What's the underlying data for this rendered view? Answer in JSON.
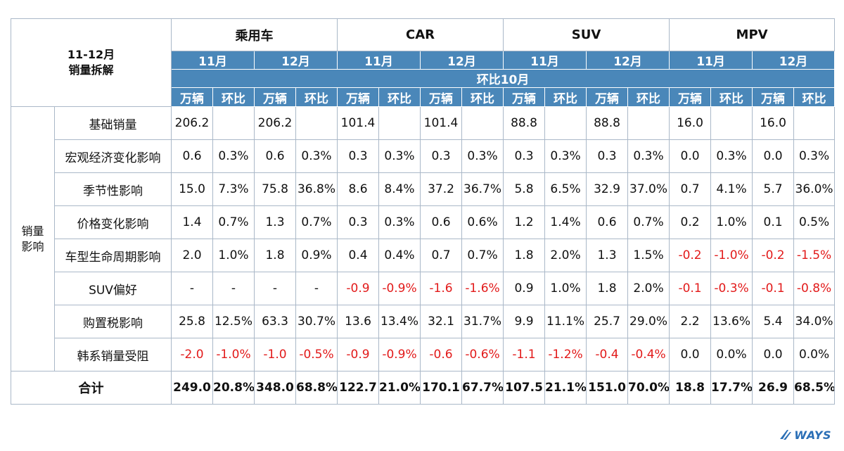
{
  "corner": {
    "line1": "11-12月",
    "line2": "销量拆解"
  },
  "groups": [
    "乘用车",
    "CAR",
    "SUV",
    "MPV"
  ],
  "months": [
    "11月",
    "12月",
    "11月",
    "12月",
    "11月",
    "12月",
    "11月",
    "12月"
  ],
  "ring_label": "环比10月",
  "units": [
    "万辆",
    "环比",
    "万辆",
    "环比",
    "万辆",
    "环比",
    "万辆",
    "环比",
    "万辆",
    "环比",
    "万辆",
    "环比",
    "万辆",
    "环比",
    "万辆",
    "环比"
  ],
  "category": {
    "line1": "销量",
    "line2": "影响"
  },
  "rows": [
    {
      "label": "基础销量",
      "values": [
        "206.2",
        "",
        "206.2",
        "",
        "101.4",
        "",
        "101.4",
        "",
        "88.8",
        "",
        "88.8",
        "",
        "16.0",
        "",
        "16.0",
        ""
      ]
    },
    {
      "label": "宏观经济变化影响",
      "values": [
        "0.6",
        "0.3%",
        "0.6",
        "0.3%",
        "0.3",
        "0.3%",
        "0.3",
        "0.3%",
        "0.3",
        "0.3%",
        "0.3",
        "0.3%",
        "0.0",
        "0.3%",
        "0.0",
        "0.3%"
      ]
    },
    {
      "label": "季节性影响",
      "values": [
        "15.0",
        "7.3%",
        "75.8",
        "36.8%",
        "8.6",
        "8.4%",
        "37.2",
        "36.7%",
        "5.8",
        "6.5%",
        "32.9",
        "37.0%",
        "0.7",
        "4.1%",
        "5.7",
        "36.0%"
      ]
    },
    {
      "label": "价格变化影响",
      "values": [
        "1.4",
        "0.7%",
        "1.3",
        "0.7%",
        "0.3",
        "0.3%",
        "0.6",
        "0.6%",
        "1.2",
        "1.4%",
        "0.6",
        "0.7%",
        "0.2",
        "1.0%",
        "0.1",
        "0.5%"
      ]
    },
    {
      "label": "车型生命周期影响",
      "values": [
        "2.0",
        "1.0%",
        "1.8",
        "0.9%",
        "0.4",
        "0.4%",
        "0.7",
        "0.7%",
        "1.8",
        "2.0%",
        "1.3",
        "1.5%",
        "-0.2",
        "-1.0%",
        "-0.2",
        "-1.5%"
      ]
    },
    {
      "label": "SUV偏好",
      "values": [
        "-",
        "-",
        "-",
        "-",
        "-0.9",
        "-0.9%",
        "-1.6",
        "-1.6%",
        "0.9",
        "1.0%",
        "1.8",
        "2.0%",
        "-0.1",
        "-0.3%",
        "-0.1",
        "-0.8%"
      ]
    },
    {
      "label": "购置税影响",
      "values": [
        "25.8",
        "12.5%",
        "63.3",
        "30.7%",
        "13.6",
        "13.4%",
        "32.1",
        "31.7%",
        "9.9",
        "11.1%",
        "25.7",
        "29.0%",
        "2.2",
        "13.6%",
        "5.4",
        "34.0%"
      ]
    },
    {
      "label": "韩系销量受阻",
      "values": [
        "-2.0",
        "-1.0%",
        "-1.0",
        "-0.5%",
        "-0.9",
        "-0.9%",
        "-0.6",
        "-0.6%",
        "-1.1",
        "-1.2%",
        "-0.4",
        "-0.4%",
        "0.0",
        "0.0%",
        "0.0",
        "0.0%"
      ]
    }
  ],
  "total": {
    "label": "合计",
    "values": [
      "249.0",
      "20.8%",
      "348.0",
      "68.8%",
      "122.7",
      "21.0%",
      "170.1",
      "67.7%",
      "107.5",
      "21.1%",
      "151.0",
      "70.0%",
      "18.8",
      "17.7%",
      "26.9",
      "68.5%"
    ]
  },
  "colors": {
    "header_blue": "#4a87b9",
    "negative_red": "#e21a1a",
    "logo_blue": "#2b6fb6"
  },
  "logo": {
    "text": "WAYS"
  }
}
